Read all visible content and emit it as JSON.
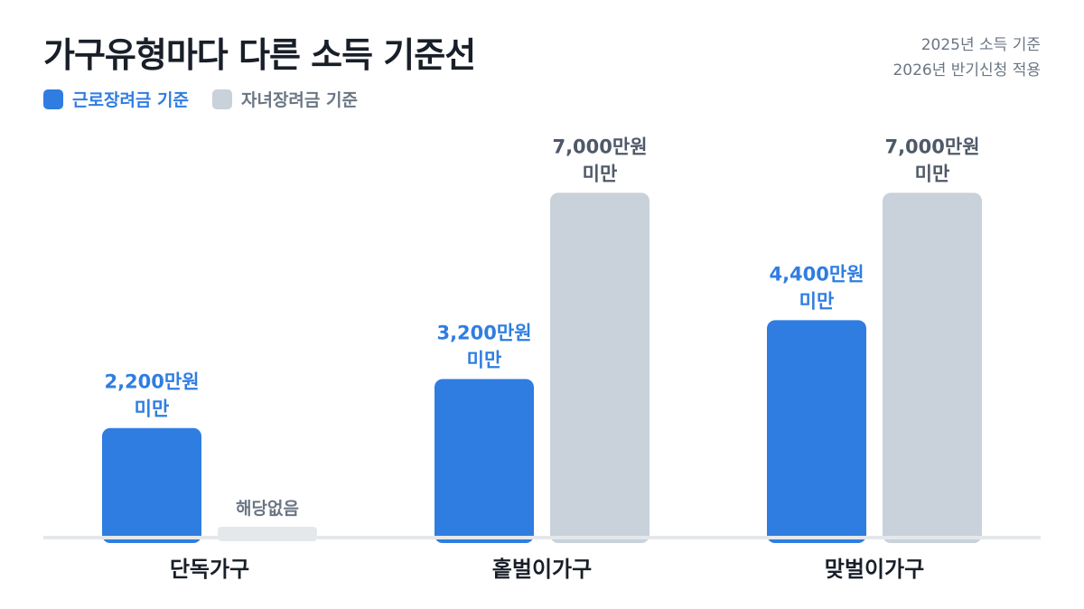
{
  "colors": {
    "earned": "#2f7de1",
    "child": "#c9d1db",
    "na_bar": "#e5e8eb",
    "title": "#191f28",
    "muted": "#6b7684",
    "axis_label": "#191f28",
    "child_label": "#4e5968",
    "baseline": "#e5e8eb"
  },
  "chart_data": {
    "type": "bar",
    "title": "가구유형마다 다른 소득 기준선",
    "notes": [
      "2025년 소득 기준",
      "2026년 반기신청 적용"
    ],
    "categories": [
      "단독가구",
      "홑벌이가구",
      "맞벌이가구"
    ],
    "unit": "만원",
    "series": [
      {
        "name": "근로장려금 기준",
        "values": [
          2200,
          3200,
          4400
        ],
        "labels": [
          [
            "2,200만원",
            "미만"
          ],
          [
            "3,200만원",
            "미만"
          ],
          [
            "4,400만원",
            "미만"
          ]
        ]
      },
      {
        "name": "자녀장려금 기준",
        "values": [
          null,
          7000,
          7000
        ],
        "labels": [
          [
            "해당없음"
          ],
          [
            "7,000만원",
            "미만"
          ],
          [
            "7,000만원",
            "미만"
          ]
        ]
      }
    ],
    "ylim": [
      0,
      7800
    ],
    "grid": false,
    "legend_position": "top-left"
  }
}
